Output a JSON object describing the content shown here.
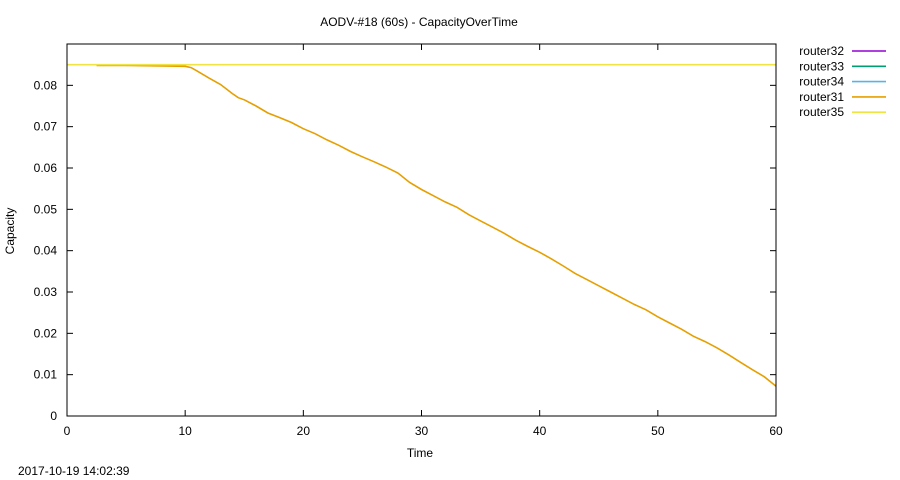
{
  "timestamp": "2017-10-19 14:02:39",
  "chart_data": {
    "type": "line",
    "title": "AODV-#18 (60s) - CapacityOverTime",
    "xlabel": "Time",
    "ylabel": "Capacity",
    "xlim": [
      0,
      60
    ],
    "ylim": [
      0,
      0.09
    ],
    "xticks": [
      0,
      10,
      20,
      30,
      40,
      50,
      60
    ],
    "yticks": [
      0,
      0.01,
      0.02,
      0.03,
      0.04,
      0.05,
      0.06,
      0.07,
      0.08
    ],
    "ytick_labels": [
      "0",
      "0.01",
      "0.02",
      "0.03",
      "0.04",
      "0.05",
      "0.06",
      "0.07",
      "0.08"
    ],
    "grid": false,
    "legend_position": "outside-right-top",
    "series": [
      {
        "name": "router32",
        "color": "#9400d3",
        "x": [],
        "y": []
      },
      {
        "name": "router33",
        "color": "#009e73",
        "x": [],
        "y": []
      },
      {
        "name": "router34",
        "color": "#56b4e9",
        "x": [],
        "y": []
      },
      {
        "name": "router31",
        "color": "#e69f00",
        "x": [
          2.5,
          5,
          8,
          10,
          10.5,
          11,
          12,
          13,
          14,
          14.5,
          15,
          16,
          17,
          18,
          19,
          20,
          21,
          22,
          23,
          24,
          25,
          26,
          27,
          28,
          29,
          30,
          31,
          32,
          33,
          34,
          35,
          36,
          37,
          38,
          39,
          40,
          41,
          42,
          43,
          44,
          45,
          46,
          47,
          48,
          49,
          50,
          51,
          52,
          53,
          54,
          55,
          56,
          57,
          58,
          59,
          60
        ],
        "y": [
          0.0848,
          0.0848,
          0.0847,
          0.0846,
          0.0843,
          0.0835,
          0.0818,
          0.0802,
          0.078,
          0.077,
          0.0765,
          0.075,
          0.0733,
          0.0722,
          0.071,
          0.0695,
          0.0683,
          0.0668,
          0.0655,
          0.064,
          0.0627,
          0.0615,
          0.0602,
          0.0588,
          0.0565,
          0.0548,
          0.0533,
          0.0518,
          0.0505,
          0.0487,
          0.0472,
          0.0457,
          0.0442,
          0.0425,
          0.041,
          0.0396,
          0.038,
          0.0363,
          0.0345,
          0.033,
          0.0315,
          0.03,
          0.0285,
          0.027,
          0.0257,
          0.024,
          0.0225,
          0.021,
          0.0193,
          0.018,
          0.0165,
          0.0148,
          0.013,
          0.0112,
          0.0095,
          0.0072
        ]
      },
      {
        "name": "router35",
        "color": "#f0e442",
        "x": [
          0,
          60
        ],
        "y": [
          0.085,
          0.085
        ]
      }
    ]
  }
}
